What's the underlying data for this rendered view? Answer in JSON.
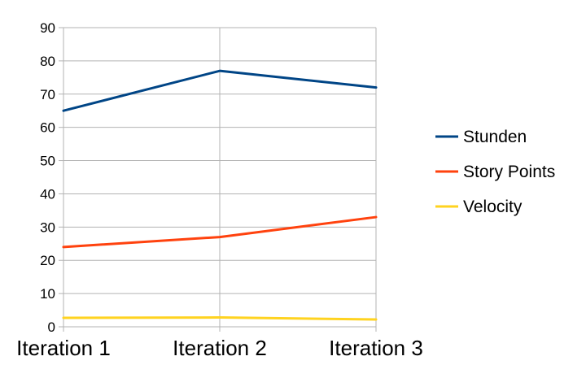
{
  "chart_data": {
    "type": "line",
    "categories": [
      "Iteration 1",
      "Iteration 2",
      "Iteration 3"
    ],
    "series": [
      {
        "name": "Stunden",
        "values": [
          65,
          77,
          72
        ],
        "color": "#004586"
      },
      {
        "name": "Story Points",
        "values": [
          24,
          27,
          33
        ],
        "color": "#ff420e"
      },
      {
        "name": "Velocity",
        "values": [
          2.7,
          2.8,
          2.2
        ],
        "color": "#ffd320"
      }
    ],
    "ylim": [
      0,
      90
    ],
    "yticks": [
      0,
      10,
      20,
      30,
      40,
      50,
      60,
      70,
      80,
      90
    ],
    "grid": true,
    "legend_position": "right"
  }
}
